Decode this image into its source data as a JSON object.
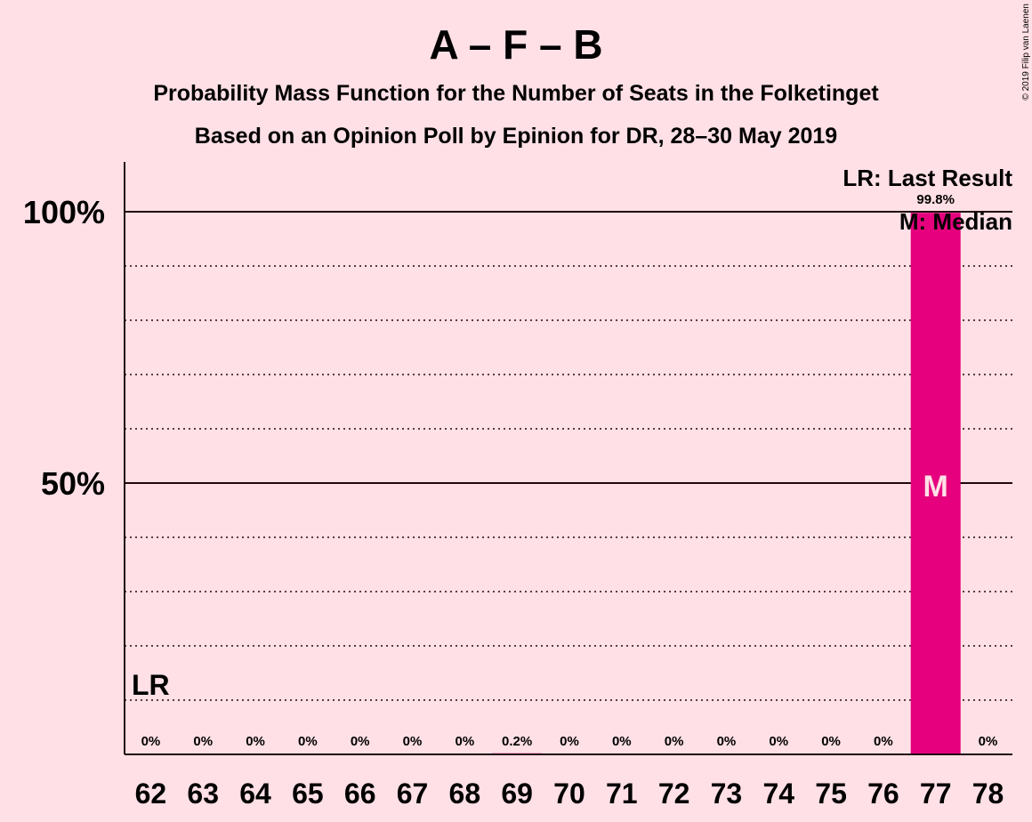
{
  "chart_data": {
    "type": "bar",
    "title": "A – F – B",
    "subtitle_1": "Probability Mass Function for the Number of Seats in the Folketinget",
    "subtitle_2": "Based on an Opinion Poll by Epinion for DR, 28–30 May 2019",
    "categories": [
      "62",
      "63",
      "64",
      "65",
      "66",
      "67",
      "68",
      "69",
      "70",
      "71",
      "72",
      "73",
      "74",
      "75",
      "76",
      "77",
      "78"
    ],
    "values": [
      0,
      0,
      0,
      0,
      0,
      0,
      0,
      0.2,
      0,
      0,
      0,
      0,
      0,
      0,
      0,
      99.8,
      0
    ],
    "value_labels": [
      "0%",
      "0%",
      "0%",
      "0%",
      "0%",
      "0%",
      "0%",
      "0.2%",
      "0%",
      "0%",
      "0%",
      "0%",
      "0%",
      "0%",
      "0%",
      "99.8%",
      "0%"
    ],
    "ylim": [
      0,
      110
    ],
    "y_ticks": [
      {
        "value": 50,
        "label": "50%"
      },
      {
        "value": 100,
        "label": "100%"
      }
    ],
    "gridlines": [
      10,
      20,
      30,
      40,
      60,
      70,
      80,
      90
    ],
    "grid": true,
    "last_result": {
      "category": "62",
      "marker": "LR"
    },
    "median": {
      "category": "77",
      "marker": "M"
    },
    "legend": {
      "placement": "top-right",
      "lr": "LR: Last Result",
      "m": "M: Median"
    },
    "colors": {
      "background": "#ffe0e6",
      "bar": "#e6007e",
      "text": "#200808",
      "median_text": "#ffe0e6"
    },
    "copyright": "© 2019 Filip van Laenen"
  }
}
